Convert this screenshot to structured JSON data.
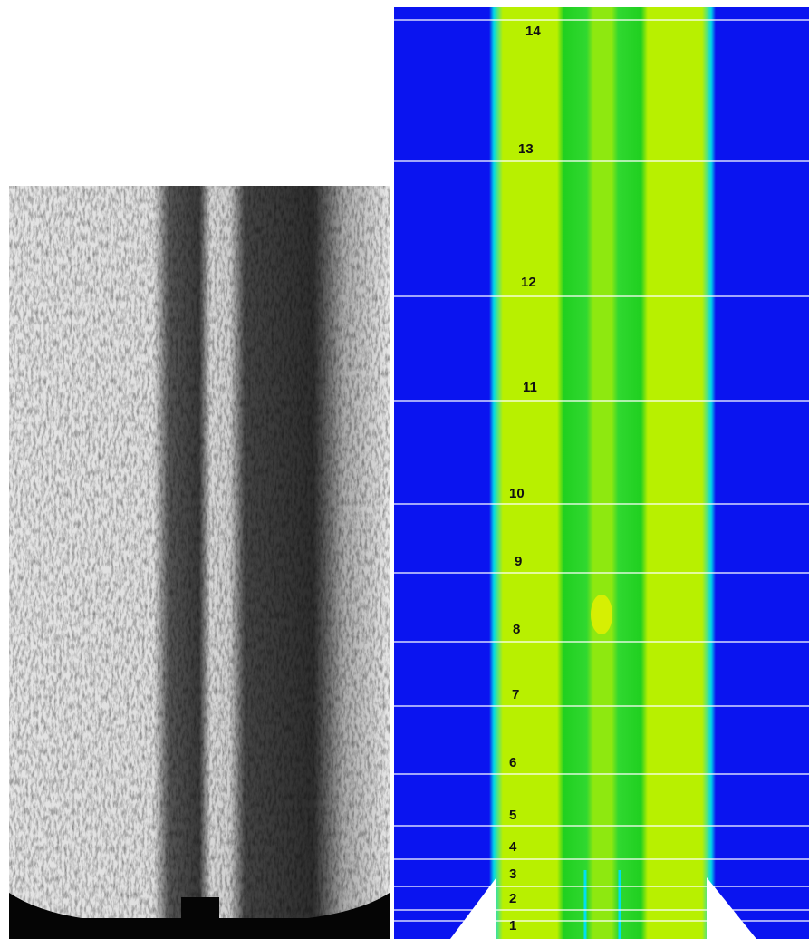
{
  "station_labels": [
    "1",
    "2",
    "3",
    "4",
    "5",
    "6",
    "7",
    "8",
    "9",
    "10",
    "11",
    "12",
    "13",
    "14"
  ]
}
